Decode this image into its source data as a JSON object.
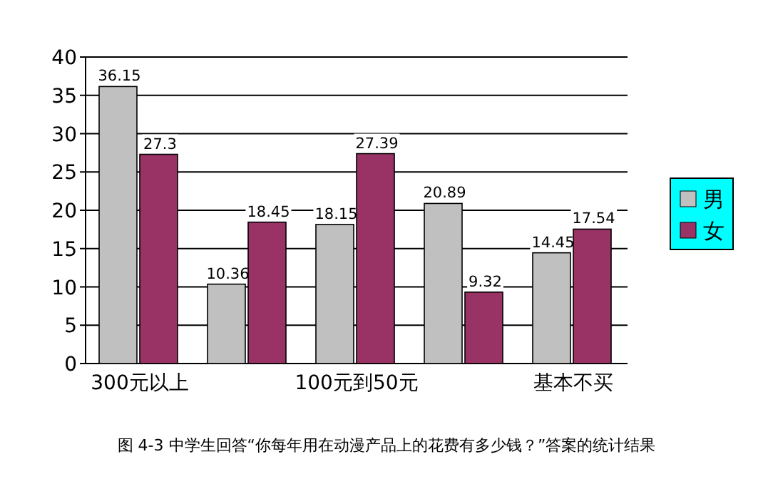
{
  "chart_data": {
    "type": "bar",
    "categories": [
      "300元以上",
      null,
      "100元到50元",
      null,
      "基本不买"
    ],
    "series": [
      {
        "name": "男",
        "color": "#c0c0c0",
        "values": [
          36.15,
          10.36,
          18.15,
          20.89,
          14.45
        ]
      },
      {
        "name": "女",
        "color": "#993366",
        "values": [
          27.3,
          18.45,
          27.39,
          9.32,
          17.54
        ]
      }
    ],
    "ylim": [
      0,
      40
    ],
    "yticks": [
      0,
      5,
      10,
      15,
      20,
      25,
      30,
      35,
      40
    ],
    "grid": "y",
    "legend": "right",
    "data_labels": true,
    "annotations": [
      "图 4-3  中学生回答“你每年用在动漫产品上的花费有多少钱？”答案的统计结果"
    ]
  }
}
